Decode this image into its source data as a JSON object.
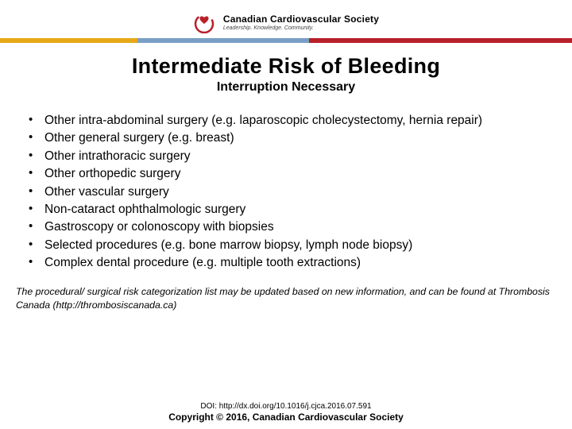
{
  "header": {
    "org_name": "Canadian Cardiovascular Society",
    "org_tagline": "Leadership. Knowledge. Community.",
    "logo_color_outer": "#b8202a",
    "logo_color_inner": "#ffffff",
    "stripe_segments": [
      {
        "color": "#e6a817",
        "width_pct": 24
      },
      {
        "color": "#7a9fc6",
        "width_pct": 30
      },
      {
        "color": "#b8202a",
        "width_pct": 46
      }
    ]
  },
  "title": "Intermediate Risk of Bleeding",
  "subtitle": "Interruption Necessary",
  "bullets": [
    "Other intra-abdominal surgery (e.g. laparoscopic cholecystectomy, hernia repair)",
    "Other general surgery (e.g. breast)",
    "Other intrathoracic surgery",
    "Other orthopedic surgery",
    "Other vascular surgery",
    "Non-cataract ophthalmologic surgery",
    "Gastroscopy or colonoscopy with biopsies",
    "Selected procedures (e.g. bone marrow biopsy, lymph node biopsy)",
    "Complex dental procedure (e.g. multiple tooth extractions)"
  ],
  "footnote": "The procedural/ surgical risk categorization list may be updated based on new information, and can be found at Thrombosis Canada (http://thrombosiscanada.ca)",
  "doi": "DOI: http://dx.doi.org/10.1016/j.cjca.2016.07.591",
  "copyright": "Copyright © 2016, Canadian Cardiovascular Society",
  "styling": {
    "background": "#ffffff",
    "text_color": "#000000",
    "title_fontsize": 27,
    "subtitle_fontsize": 16,
    "body_fontsize": 15.5,
    "footnote_fontsize": 12.3,
    "doi_fontsize": 10,
    "copyright_fontsize": 12
  }
}
